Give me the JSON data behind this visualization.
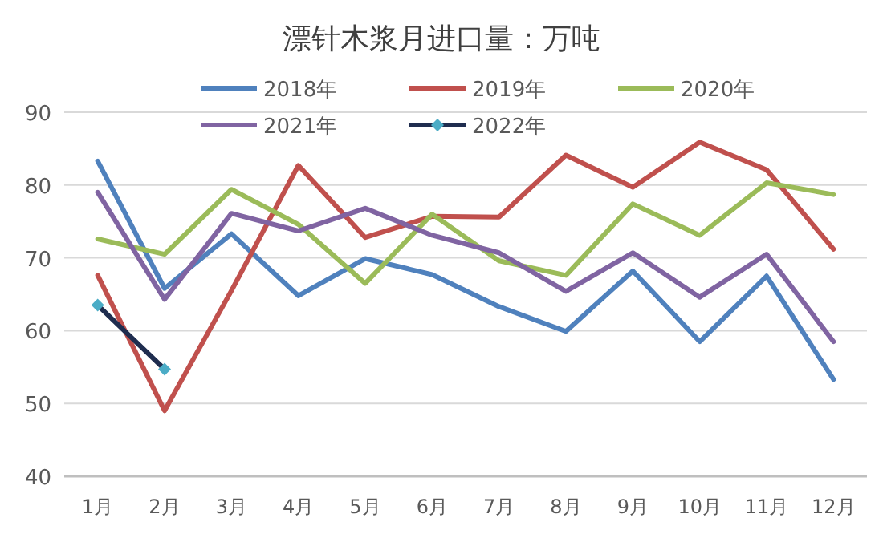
{
  "chart_data": {
    "type": "line",
    "title": "漂针木浆月进口量：万吨",
    "categories": [
      "1月",
      "2月",
      "3月",
      "4月",
      "5月",
      "6月",
      "7月",
      "8月",
      "9月",
      "10月",
      "11月",
      "12月"
    ],
    "ylim": [
      40,
      90
    ],
    "yticks": [
      40,
      50,
      60,
      70,
      80,
      90
    ],
    "grid": "y",
    "legend": "top",
    "series": [
      {
        "name": "2018年",
        "color": "#4f81bd",
        "values": [
          83.3,
          65.8,
          73.3,
          64.8,
          69.9,
          67.7,
          63.3,
          59.9,
          68.2,
          58.5,
          67.5,
          53.3
        ]
      },
      {
        "name": "2019年",
        "color": "#c0504d",
        "values": [
          67.6,
          49.0,
          65.5,
          82.7,
          72.8,
          75.7,
          75.6,
          84.1,
          79.7,
          85.9,
          82.1,
          71.2
        ]
      },
      {
        "name": "2020年",
        "color": "#9bbb59",
        "values": [
          72.6,
          70.5,
          79.4,
          74.6,
          66.5,
          76.0,
          69.6,
          67.6,
          77.4,
          73.1,
          80.3,
          78.7
        ]
      },
      {
        "name": "2021年",
        "color": "#8064a2",
        "values": [
          79.0,
          64.3,
          76.1,
          73.7,
          76.8,
          73.1,
          70.7,
          65.4,
          70.7,
          64.6,
          70.5,
          58.5
        ]
      },
      {
        "name": "2022年",
        "color": "#1f2d4f",
        "marker": "diamond",
        "values": [
          63.5,
          54.7,
          null,
          null,
          null,
          null,
          null,
          null,
          null,
          null,
          null,
          null
        ]
      }
    ]
  }
}
